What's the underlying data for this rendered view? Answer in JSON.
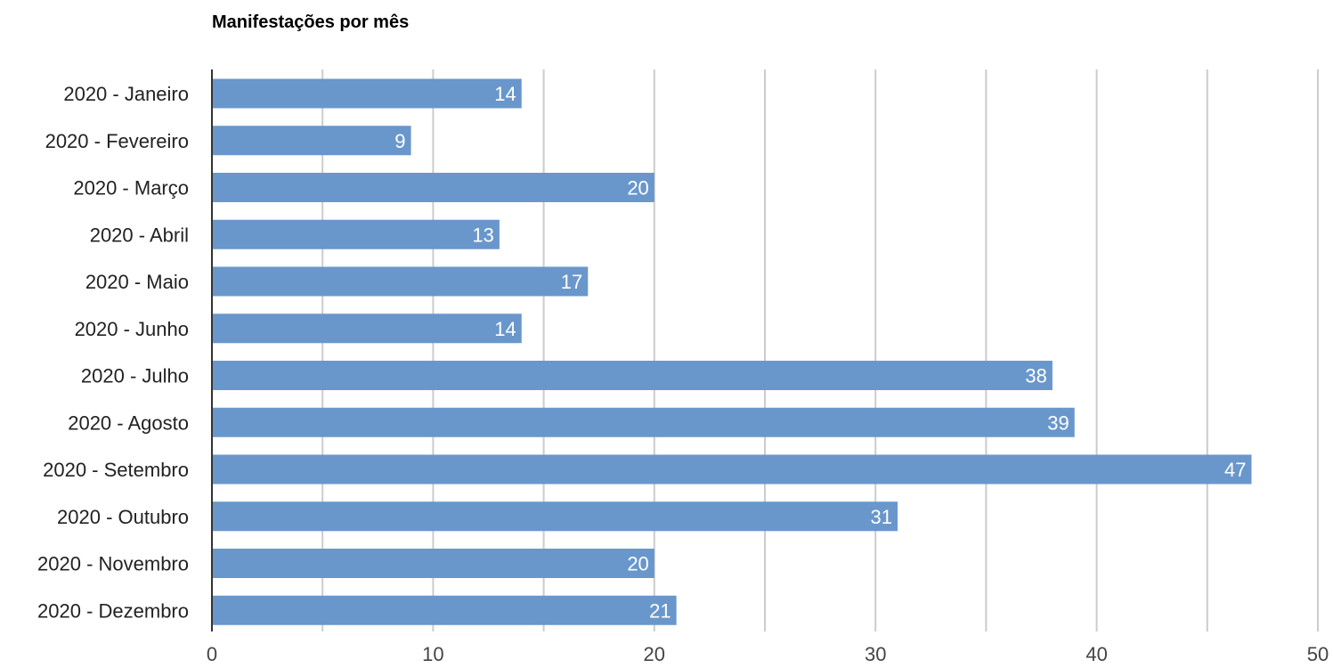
{
  "chart_data": {
    "type": "bar",
    "orientation": "horizontal",
    "title": "Manifestações por mês",
    "xlabel": "",
    "ylabel": "",
    "categories": [
      "2020 - Janeiro",
      "2020 - Fevereiro",
      "2020 - Março",
      "2020 - Abril",
      "2020 - Maio",
      "2020 - Junho",
      "2020 - Julho",
      "2020 - Agosto",
      "2020 - Setembro",
      "2020 - Outubro",
      "2020 - Novembro",
      "2020 - Dezembro"
    ],
    "values": [
      14,
      9,
      20,
      13,
      17,
      14,
      38,
      39,
      47,
      31,
      20,
      21
    ],
    "xlim": [
      0,
      50
    ],
    "major_ticks": [
      0,
      10,
      20,
      30,
      40,
      50
    ],
    "minor_gridlines": [
      5,
      15,
      25,
      35,
      45
    ],
    "grid": true,
    "legend": "none",
    "data_labels": true,
    "colors": {
      "bar": "#6997cc",
      "gridline": "#cccccc",
      "axis": "#333333",
      "data_label": "#ffffff",
      "text": "#222222"
    }
  }
}
